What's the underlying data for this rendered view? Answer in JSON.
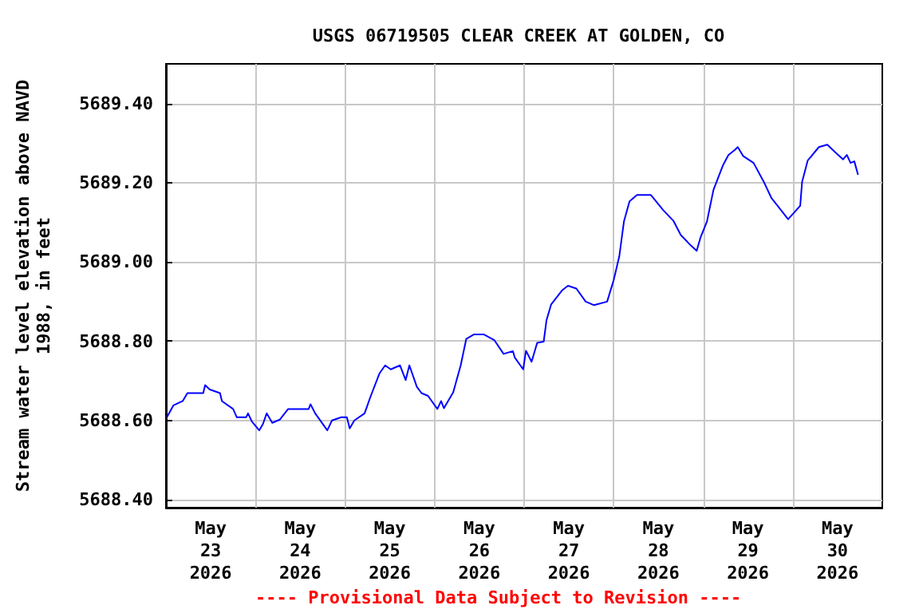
{
  "chart_data": {
    "type": "line",
    "title": "USGS 06719505 CLEAR CREEK AT GOLDEN, CO",
    "ylabel": "Stream water level elevation above NAVD\n1988, in feet",
    "annotations": [
      "---- Provisional Data Subject to Revision ----"
    ],
    "x": [
      "2026-05-23T00:15",
      "2026-05-23T02:00",
      "2026-05-23T04:30",
      "2026-05-23T05:45",
      "2026-05-23T10:00",
      "2026-05-23T10:30",
      "2026-05-23T11:45",
      "2026-05-23T14:30",
      "2026-05-23T15:00",
      "2026-05-23T18:00",
      "2026-05-23T19:00",
      "2026-05-23T21:30",
      "2026-05-23T22:00",
      "2026-05-23T23:00",
      "2026-05-24T01:00",
      "2026-05-24T02:00",
      "2026-05-24T03:00",
      "2026-05-24T04:30",
      "2026-05-24T06:30",
      "2026-05-24T08:45",
      "2026-05-24T14:15",
      "2026-05-24T14:45",
      "2026-05-24T16:00",
      "2026-05-24T19:15",
      "2026-05-24T20:30",
      "2026-05-24T23:00",
      "2026-05-25T00:30",
      "2026-05-25T01:15",
      "2026-05-25T02:30",
      "2026-05-25T05:15",
      "2026-05-25T06:45",
      "2026-05-25T09:15",
      "2026-05-25T10:45",
      "2026-05-25T12:15",
      "2026-05-25T14:45",
      "2026-05-25T16:15",
      "2026-05-25T17:15",
      "2026-05-25T19:15",
      "2026-05-25T20:30",
      "2026-05-25T22:15",
      "2026-05-26T00:45",
      "2026-05-26T01:45",
      "2026-05-26T02:30",
      "2026-05-26T05:00",
      "2026-05-26T07:00",
      "2026-05-26T08:30",
      "2026-05-26T10:30",
      "2026-05-26T13:15",
      "2026-05-26T16:00",
      "2026-05-26T18:30",
      "2026-05-26T21:00",
      "2026-05-26T21:30",
      "2026-05-26T23:45",
      "2026-05-27T00:30",
      "2026-05-27T02:00",
      "2026-05-27T03:30",
      "2026-05-27T05:15",
      "2026-05-27T06:00",
      "2026-05-27T07:15",
      "2026-05-27T10:15",
      "2026-05-27T11:45",
      "2026-05-27T14:00",
      "2026-05-27T16:30",
      "2026-05-27T18:45",
      "2026-05-27T22:15",
      "2026-05-28T00:00",
      "2026-05-28T01:30",
      "2026-05-28T02:45",
      "2026-05-28T04:15",
      "2026-05-28T06:15",
      "2026-05-28T10:00",
      "2026-05-28T13:15",
      "2026-05-28T16:00",
      "2026-05-28T18:00",
      "2026-05-28T20:45",
      "2026-05-28T22:15",
      "2026-05-28T23:15",
      "2026-05-29T01:00",
      "2026-05-29T02:45",
      "2026-05-29T05:15",
      "2026-05-29T06:45",
      "2026-05-29T08:30",
      "2026-05-29T09:15",
      "2026-05-29T10:45",
      "2026-05-29T13:30",
      "2026-05-29T16:15",
      "2026-05-29T18:15",
      "2026-05-29T21:00",
      "2026-05-29T22:45",
      "2026-05-30T00:30",
      "2026-05-30T02:00",
      "2026-05-30T02:30",
      "2026-05-30T04:00",
      "2026-05-30T07:00",
      "2026-05-30T09:15",
      "2026-05-30T11:30",
      "2026-05-30T13:30",
      "2026-05-30T14:30",
      "2026-05-30T15:30",
      "2026-05-30T16:30",
      "2026-05-30T17:30"
    ],
    "series": [
      {
        "color": "#0000ff",
        "values": [
          5688.608,
          5688.638,
          5688.649,
          5688.669,
          5688.669,
          5688.689,
          5688.678,
          5688.669,
          5688.649,
          5688.629,
          5688.608,
          5688.608,
          5688.618,
          5688.598,
          5688.575,
          5688.591,
          5688.618,
          5688.594,
          5688.602,
          5688.629,
          5688.629,
          5688.641,
          5688.618,
          5688.575,
          5688.6,
          5688.608,
          5688.608,
          5688.58,
          5688.6,
          5688.618,
          5688.658,
          5688.719,
          5688.739,
          5688.729,
          5688.739,
          5688.702,
          5688.739,
          5688.685,
          5688.669,
          5688.662,
          5688.629,
          5688.649,
          5688.631,
          5688.671,
          5688.739,
          5688.806,
          5688.817,
          5688.817,
          5688.803,
          5688.768,
          5688.775,
          5688.759,
          5688.729,
          5688.776,
          5688.748,
          5688.796,
          5688.799,
          5688.853,
          5688.893,
          5688.929,
          5688.94,
          5688.933,
          5688.9,
          5688.891,
          5688.9,
          5688.954,
          5689.014,
          5689.102,
          5689.153,
          5689.169,
          5689.169,
          5689.131,
          5689.104,
          5689.068,
          5689.041,
          5689.028,
          5689.061,
          5689.102,
          5689.182,
          5689.243,
          5689.27,
          5689.283,
          5689.29,
          5689.267,
          5689.25,
          5689.202,
          5689.162,
          5689.129,
          5689.108,
          5689.126,
          5689.142,
          5689.202,
          5689.256,
          5689.29,
          5689.296,
          5689.276,
          5689.259,
          5689.27,
          5689.25,
          5689.254,
          5689.22
        ]
      }
    ],
    "xlim": [
      "2026-05-23T00:00",
      "2026-05-31T00:00"
    ],
    "xticks": [
      {
        "value": "2026-05-23T12:00",
        "label": "May\n23\n2026"
      },
      {
        "value": "2026-05-24T12:00",
        "label": "May\n24\n2026"
      },
      {
        "value": "2026-05-25T12:00",
        "label": "May\n25\n2026"
      },
      {
        "value": "2026-05-26T12:00",
        "label": "May\n26\n2026"
      },
      {
        "value": "2026-05-27T12:00",
        "label": "May\n27\n2026"
      },
      {
        "value": "2026-05-28T12:00",
        "label": "May\n28\n2026"
      },
      {
        "value": "2026-05-29T12:00",
        "label": "May\n29\n2026"
      },
      {
        "value": "2026-05-30T12:00",
        "label": "May\n30\n2026"
      },
      {
        "value": "2026-05-24T00:00",
        "label": null
      },
      {
        "value": "2026-05-25T00:00",
        "label": null
      },
      {
        "value": "2026-05-26T00:00",
        "label": null
      },
      {
        "value": "2026-05-27T00:00",
        "label": null
      },
      {
        "value": "2026-05-28T00:00",
        "label": null
      },
      {
        "value": "2026-05-29T00:00",
        "label": null
      },
      {
        "value": "2026-05-30T00:00",
        "label": null
      }
    ],
    "ylim": [
      5688.38,
      5689.5
    ],
    "yticks": [
      {
        "value": 5688.4,
        "label": "5688.40"
      },
      {
        "value": 5688.6,
        "label": "5688.60"
      },
      {
        "value": 5688.8,
        "label": "5688.80"
      },
      {
        "value": 5689.0,
        "label": "5689.00"
      },
      {
        "value": 5689.2,
        "label": "5689.20"
      },
      {
        "value": 5689.4,
        "label": "5689.40"
      }
    ],
    "grid": true,
    "marker": "none",
    "line_style": "solid"
  }
}
